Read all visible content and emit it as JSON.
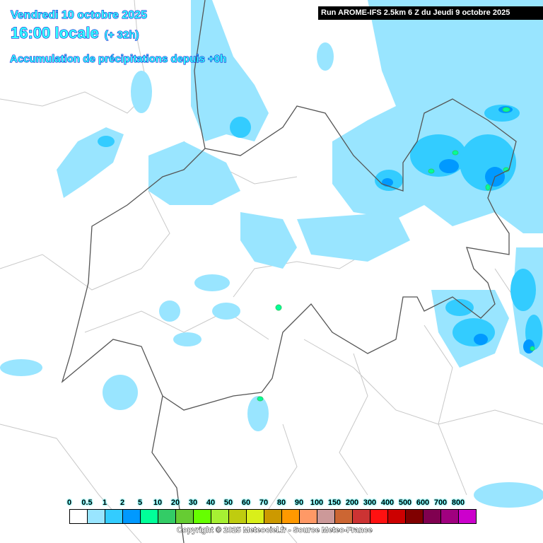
{
  "header": {
    "date": "Vendredi 10 octobre 2025",
    "time": "16:00 locale",
    "offset": "(+ 32h)",
    "title": "Accumulation de précipitations depuis +0h"
  },
  "run_label": "Run AROME-IFS 2.5km 6 Z du Jeudi 9 octobre 2025",
  "legend": {
    "unit_labels": [
      "0",
      "0.5",
      "1",
      "2",
      "5",
      "10",
      "20",
      "30",
      "40",
      "50",
      "60",
      "70",
      "80",
      "90",
      "100",
      "150",
      "200",
      "300",
      "400",
      "500",
      "600",
      "700",
      "800"
    ],
    "colors": [
      "#ffffff",
      "#99e5ff",
      "#33ccff",
      "#0099ff",
      "#00ff99",
      "#33cc66",
      "#66cc33",
      "#66ff00",
      "#a6f033",
      "#bfcc0f",
      "#d9ef1a",
      "#cc9900",
      "#ff9900",
      "#ff9966",
      "#cc9999",
      "#cc6633",
      "#cc3333",
      "#ff1111",
      "#cc0000",
      "#800000",
      "#800050",
      "#a0007f",
      "#cc00cc"
    ]
  },
  "copyright": "Copyright © 2025 Meteociel.fr - Source Meteo-France"
}
